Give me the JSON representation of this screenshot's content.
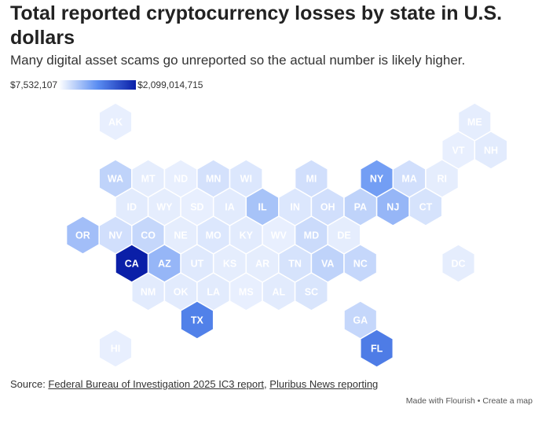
{
  "header": {
    "title": "Total reported cryptocurrency losses by state in U.S. dollars",
    "subtitle": "Many digital asset scams go unreported so the actual number is likely higher."
  },
  "legend": {
    "min_label": "$7,532,107",
    "max_label": "$2,099,014,715"
  },
  "colors": {
    "low": "#eef3fe",
    "high": "#0a1fa8",
    "label_light": "#ffffff"
  },
  "map_data": {
    "type": "hex-tile-map",
    "states": [
      {
        "abbr": "AK",
        "col": 1,
        "row": 0,
        "intensity": 0.02
      },
      {
        "abbr": "ME",
        "col": 12,
        "row": 0,
        "intensity": 0.03
      },
      {
        "abbr": "VT",
        "col": 11,
        "row": 1,
        "intensity": 0.02
      },
      {
        "abbr": "NH",
        "col": 12,
        "row": 1,
        "intensity": 0.04
      },
      {
        "abbr": "WA",
        "col": 1,
        "row": 2,
        "intensity": 0.16
      },
      {
        "abbr": "MT",
        "col": 2,
        "row": 2,
        "intensity": 0.03
      },
      {
        "abbr": "ND",
        "col": 3,
        "row": 2,
        "intensity": 0.02
      },
      {
        "abbr": "MN",
        "col": 4,
        "row": 2,
        "intensity": 0.09
      },
      {
        "abbr": "WI",
        "col": 5,
        "row": 2,
        "intensity": 0.06
      },
      {
        "abbr": "MI",
        "col": 7,
        "row": 2,
        "intensity": 0.1
      },
      {
        "abbr": "NY",
        "col": 9,
        "row": 2,
        "intensity": 0.42
      },
      {
        "abbr": "MA",
        "col": 10,
        "row": 2,
        "intensity": 0.1
      },
      {
        "abbr": "RI",
        "col": 11,
        "row": 2,
        "intensity": 0.03
      },
      {
        "abbr": "ID",
        "col": 1,
        "row": 3,
        "intensity": 0.04
      },
      {
        "abbr": "WY",
        "col": 2,
        "row": 3,
        "intensity": 0.03
      },
      {
        "abbr": "SD",
        "col": 3,
        "row": 3,
        "intensity": 0.02
      },
      {
        "abbr": "IA",
        "col": 4,
        "row": 3,
        "intensity": 0.04
      },
      {
        "abbr": "IL",
        "col": 5,
        "row": 3,
        "intensity": 0.24
      },
      {
        "abbr": "IN",
        "col": 6,
        "row": 3,
        "intensity": 0.06
      },
      {
        "abbr": "OH",
        "col": 7,
        "row": 3,
        "intensity": 0.1
      },
      {
        "abbr": "PA",
        "col": 8,
        "row": 3,
        "intensity": 0.16
      },
      {
        "abbr": "NJ",
        "col": 9,
        "row": 3,
        "intensity": 0.3
      },
      {
        "abbr": "CT",
        "col": 10,
        "row": 3,
        "intensity": 0.08
      },
      {
        "abbr": "OR",
        "col": 0,
        "row": 4,
        "intensity": 0.26
      },
      {
        "abbr": "NV",
        "col": 1,
        "row": 4,
        "intensity": 0.1
      },
      {
        "abbr": "CO",
        "col": 2,
        "row": 4,
        "intensity": 0.14
      },
      {
        "abbr": "NE",
        "col": 3,
        "row": 4,
        "intensity": 0.03
      },
      {
        "abbr": "MO",
        "col": 4,
        "row": 4,
        "intensity": 0.06
      },
      {
        "abbr": "KY",
        "col": 5,
        "row": 4,
        "intensity": 0.04
      },
      {
        "abbr": "WV",
        "col": 6,
        "row": 4,
        "intensity": 0.02
      },
      {
        "abbr": "MD",
        "col": 7,
        "row": 4,
        "intensity": 0.12
      },
      {
        "abbr": "DE",
        "col": 8,
        "row": 4,
        "intensity": 0.03
      },
      {
        "abbr": "CA",
        "col": 1,
        "row": 5,
        "intensity": 1.0
      },
      {
        "abbr": "AZ",
        "col": 2,
        "row": 5,
        "intensity": 0.3
      },
      {
        "abbr": "UT",
        "col": 3,
        "row": 5,
        "intensity": 0.05
      },
      {
        "abbr": "KS",
        "col": 4,
        "row": 5,
        "intensity": 0.03
      },
      {
        "abbr": "AR",
        "col": 5,
        "row": 5,
        "intensity": 0.03
      },
      {
        "abbr": "TN",
        "col": 6,
        "row": 5,
        "intensity": 0.08
      },
      {
        "abbr": "VA",
        "col": 7,
        "row": 5,
        "intensity": 0.16
      },
      {
        "abbr": "NC",
        "col": 8,
        "row": 5,
        "intensity": 0.14
      },
      {
        "abbr": "DC",
        "col": 11,
        "row": 5,
        "intensity": 0.03
      },
      {
        "abbr": "NM",
        "col": 2,
        "row": 6,
        "intensity": 0.04
      },
      {
        "abbr": "OK",
        "col": 3,
        "row": 6,
        "intensity": 0.04
      },
      {
        "abbr": "LA",
        "col": 4,
        "row": 6,
        "intensity": 0.04
      },
      {
        "abbr": "MS",
        "col": 5,
        "row": 6,
        "intensity": 0.02
      },
      {
        "abbr": "AL",
        "col": 6,
        "row": 6,
        "intensity": 0.04
      },
      {
        "abbr": "SC",
        "col": 7,
        "row": 6,
        "intensity": 0.07
      },
      {
        "abbr": "TX",
        "col": 3,
        "row": 7,
        "intensity": 0.56
      },
      {
        "abbr": "GA",
        "col": 8,
        "row": 7,
        "intensity": 0.14
      },
      {
        "abbr": "HI",
        "col": 1,
        "row": 8,
        "intensity": 0.02
      },
      {
        "abbr": "FL",
        "col": 9,
        "row": 8,
        "intensity": 0.58
      }
    ]
  },
  "footer": {
    "source_prefix": "Source: ",
    "source_link_1": "Federal Bureau of Investigation 2025 IC3 report",
    "source_sep": ", ",
    "source_link_2": "Pluribus News reporting",
    "credit_made": "Made with Flourish",
    "credit_sep": " • ",
    "credit_create": "Create a map"
  }
}
